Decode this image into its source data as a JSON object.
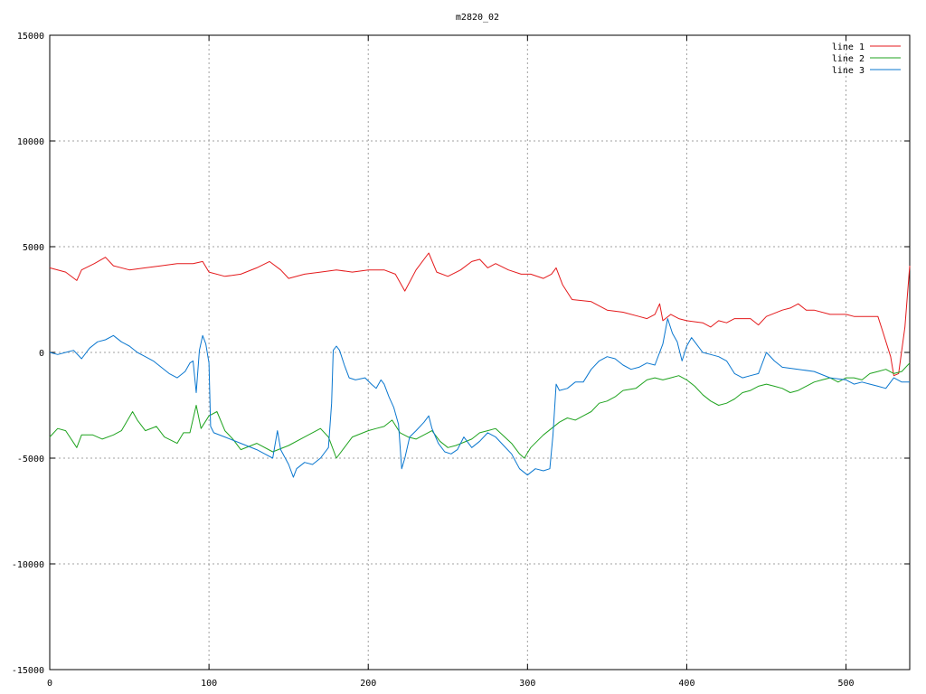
{
  "chart_data": {
    "type": "line",
    "title": "m2820_02",
    "xlabel": "",
    "ylabel": "",
    "xlim": [
      0,
      540
    ],
    "ylim": [
      -15000,
      15000
    ],
    "xticks": [
      0,
      100,
      200,
      300,
      400,
      500
    ],
    "yticks": [
      -15000,
      -10000,
      -5000,
      0,
      5000,
      10000,
      15000
    ],
    "grid": true,
    "legend_position": "top-right",
    "series": [
      {
        "name": "line 1",
        "color": "#e41a1c",
        "points": [
          [
            0,
            4000
          ],
          [
            10,
            3800
          ],
          [
            17,
            3400
          ],
          [
            20,
            3900
          ],
          [
            28,
            4200
          ],
          [
            35,
            4500
          ],
          [
            40,
            4100
          ],
          [
            50,
            3900
          ],
          [
            60,
            4000
          ],
          [
            70,
            4100
          ],
          [
            80,
            4200
          ],
          [
            90,
            4200
          ],
          [
            96,
            4300
          ],
          [
            100,
            3800
          ],
          [
            110,
            3600
          ],
          [
            120,
            3700
          ],
          [
            130,
            4000
          ],
          [
            138,
            4300
          ],
          [
            145,
            3900
          ],
          [
            150,
            3500
          ],
          [
            160,
            3700
          ],
          [
            170,
            3800
          ],
          [
            180,
            3900
          ],
          [
            190,
            3800
          ],
          [
            200,
            3900
          ],
          [
            210,
            3900
          ],
          [
            217,
            3700
          ],
          [
            223,
            2900
          ],
          [
            230,
            3900
          ],
          [
            238,
            4700
          ],
          [
            243,
            3800
          ],
          [
            250,
            3600
          ],
          [
            258,
            3900
          ],
          [
            265,
            4300
          ],
          [
            270,
            4400
          ],
          [
            275,
            4000
          ],
          [
            280,
            4200
          ],
          [
            288,
            3900
          ],
          [
            296,
            3700
          ],
          [
            302,
            3700
          ],
          [
            310,
            3500
          ],
          [
            315,
            3700
          ],
          [
            318,
            4000
          ],
          [
            322,
            3200
          ],
          [
            328,
            2500
          ],
          [
            340,
            2400
          ],
          [
            350,
            2000
          ],
          [
            360,
            1900
          ],
          [
            370,
            1700
          ],
          [
            375,
            1600
          ],
          [
            380,
            1800
          ],
          [
            383,
            2300
          ],
          [
            385,
            1500
          ],
          [
            390,
            1800
          ],
          [
            395,
            1600
          ],
          [
            400,
            1500
          ],
          [
            410,
            1400
          ],
          [
            415,
            1200
          ],
          [
            420,
            1500
          ],
          [
            425,
            1400
          ],
          [
            430,
            1600
          ],
          [
            440,
            1600
          ],
          [
            445,
            1300
          ],
          [
            450,
            1700
          ],
          [
            460,
            2000
          ],
          [
            465,
            2100
          ],
          [
            470,
            2300
          ],
          [
            475,
            2000
          ],
          [
            480,
            2000
          ],
          [
            490,
            1800
          ],
          [
            500,
            1800
          ],
          [
            505,
            1700
          ],
          [
            515,
            1700
          ],
          [
            520,
            1700
          ],
          [
            523,
            1000
          ],
          [
            528,
            -200
          ],
          [
            530,
            -1100
          ],
          [
            533,
            -1000
          ],
          [
            537,
            1200
          ],
          [
            540,
            4100
          ]
        ]
      },
      {
        "name": "line 2",
        "color": "#1fa31f",
        "points": [
          [
            0,
            -4000
          ],
          [
            5,
            -3600
          ],
          [
            10,
            -3700
          ],
          [
            17,
            -4500
          ],
          [
            20,
            -3900
          ],
          [
            27,
            -3900
          ],
          [
            33,
            -4100
          ],
          [
            40,
            -3900
          ],
          [
            45,
            -3700
          ],
          [
            52,
            -2800
          ],
          [
            55,
            -3200
          ],
          [
            60,
            -3700
          ],
          [
            67,
            -3500
          ],
          [
            72,
            -4000
          ],
          [
            80,
            -4300
          ],
          [
            84,
            -3800
          ],
          [
            88,
            -3800
          ],
          [
            92,
            -2500
          ],
          [
            95,
            -3600
          ],
          [
            100,
            -3000
          ],
          [
            105,
            -2800
          ],
          [
            110,
            -3700
          ],
          [
            115,
            -4100
          ],
          [
            120,
            -4600
          ],
          [
            130,
            -4300
          ],
          [
            140,
            -4700
          ],
          [
            150,
            -4400
          ],
          [
            160,
            -4000
          ],
          [
            170,
            -3600
          ],
          [
            175,
            -4000
          ],
          [
            180,
            -5000
          ],
          [
            185,
            -4500
          ],
          [
            190,
            -4000
          ],
          [
            200,
            -3700
          ],
          [
            205,
            -3600
          ],
          [
            210,
            -3500
          ],
          [
            215,
            -3200
          ],
          [
            220,
            -3800
          ],
          [
            225,
            -4000
          ],
          [
            230,
            -4100
          ],
          [
            240,
            -3700
          ],
          [
            245,
            -4200
          ],
          [
            250,
            -4500
          ],
          [
            255,
            -4400
          ],
          [
            265,
            -4100
          ],
          [
            270,
            -3800
          ],
          [
            275,
            -3700
          ],
          [
            280,
            -3600
          ],
          [
            290,
            -4300
          ],
          [
            295,
            -4800
          ],
          [
            298,
            -5000
          ],
          [
            302,
            -4500
          ],
          [
            306,
            -4200
          ],
          [
            310,
            -3900
          ],
          [
            315,
            -3600
          ],
          [
            320,
            -3300
          ],
          [
            325,
            -3100
          ],
          [
            330,
            -3200
          ],
          [
            335,
            -3000
          ],
          [
            340,
            -2800
          ],
          [
            345,
            -2400
          ],
          [
            350,
            -2300
          ],
          [
            355,
            -2100
          ],
          [
            360,
            -1800
          ],
          [
            368,
            -1700
          ],
          [
            375,
            -1300
          ],
          [
            380,
            -1200
          ],
          [
            385,
            -1300
          ],
          [
            390,
            -1200
          ],
          [
            395,
            -1100
          ],
          [
            400,
            -1300
          ],
          [
            405,
            -1600
          ],
          [
            410,
            -2000
          ],
          [
            415,
            -2300
          ],
          [
            420,
            -2500
          ],
          [
            425,
            -2400
          ],
          [
            430,
            -2200
          ],
          [
            435,
            -1900
          ],
          [
            440,
            -1800
          ],
          [
            445,
            -1600
          ],
          [
            450,
            -1500
          ],
          [
            455,
            -1600
          ],
          [
            460,
            -1700
          ],
          [
            465,
            -1900
          ],
          [
            470,
            -1800
          ],
          [
            475,
            -1600
          ],
          [
            480,
            -1400
          ],
          [
            485,
            -1300
          ],
          [
            490,
            -1200
          ],
          [
            495,
            -1400
          ],
          [
            500,
            -1200
          ],
          [
            505,
            -1200
          ],
          [
            510,
            -1300
          ],
          [
            515,
            -1000
          ],
          [
            520,
            -900
          ],
          [
            525,
            -800
          ],
          [
            530,
            -1000
          ],
          [
            535,
            -900
          ],
          [
            540,
            -500
          ]
        ]
      },
      {
        "name": "line 3",
        "color": "#0a77cf",
        "points": [
          [
            0,
            0
          ],
          [
            5,
            -100
          ],
          [
            10,
            0
          ],
          [
            15,
            100
          ],
          [
            20,
            -300
          ],
          [
            25,
            200
          ],
          [
            30,
            500
          ],
          [
            35,
            600
          ],
          [
            40,
            800
          ],
          [
            45,
            500
          ],
          [
            50,
            300
          ],
          [
            55,
            0
          ],
          [
            60,
            -200
          ],
          [
            65,
            -400
          ],
          [
            70,
            -700
          ],
          [
            75,
            -1000
          ],
          [
            80,
            -1200
          ],
          [
            85,
            -900
          ],
          [
            88,
            -500
          ],
          [
            90,
            -400
          ],
          [
            92,
            -1900
          ],
          [
            94,
            100
          ],
          [
            96,
            800
          ],
          [
            98,
            400
          ],
          [
            100,
            -500
          ],
          [
            101,
            -3500
          ],
          [
            103,
            -3800
          ],
          [
            110,
            -4000
          ],
          [
            120,
            -4300
          ],
          [
            130,
            -4600
          ],
          [
            135,
            -4800
          ],
          [
            140,
            -5000
          ],
          [
            143,
            -3700
          ],
          [
            145,
            -4600
          ],
          [
            150,
            -5300
          ],
          [
            153,
            -5900
          ],
          [
            155,
            -5500
          ],
          [
            160,
            -5200
          ],
          [
            165,
            -5300
          ],
          [
            170,
            -5000
          ],
          [
            175,
            -4500
          ],
          [
            177,
            -2400
          ],
          [
            178,
            100
          ],
          [
            180,
            300
          ],
          [
            182,
            100
          ],
          [
            185,
            -600
          ],
          [
            188,
            -1200
          ],
          [
            192,
            -1300
          ],
          [
            198,
            -1200
          ],
          [
            202,
            -1500
          ],
          [
            205,
            -1700
          ],
          [
            208,
            -1300
          ],
          [
            210,
            -1500
          ],
          [
            213,
            -2100
          ],
          [
            216,
            -2600
          ],
          [
            219,
            -3400
          ],
          [
            221,
            -5500
          ],
          [
            223,
            -5000
          ],
          [
            226,
            -4000
          ],
          [
            230,
            -3700
          ],
          [
            235,
            -3300
          ],
          [
            238,
            -3000
          ],
          [
            240,
            -3600
          ],
          [
            244,
            -4300
          ],
          [
            248,
            -4700
          ],
          [
            252,
            -4800
          ],
          [
            256,
            -4600
          ],
          [
            260,
            -4000
          ],
          [
            265,
            -4500
          ],
          [
            270,
            -4200
          ],
          [
            275,
            -3800
          ],
          [
            280,
            -4000
          ],
          [
            285,
            -4400
          ],
          [
            290,
            -4800
          ],
          [
            295,
            -5500
          ],
          [
            300,
            -5800
          ],
          [
            305,
            -5500
          ],
          [
            310,
            -5600
          ],
          [
            314,
            -5500
          ],
          [
            316,
            -3900
          ],
          [
            318,
            -1500
          ],
          [
            320,
            -1800
          ],
          [
            325,
            -1700
          ],
          [
            330,
            -1400
          ],
          [
            335,
            -1400
          ],
          [
            340,
            -800
          ],
          [
            345,
            -400
          ],
          [
            350,
            -200
          ],
          [
            355,
            -300
          ],
          [
            360,
            -600
          ],
          [
            365,
            -800
          ],
          [
            370,
            -700
          ],
          [
            375,
            -500
          ],
          [
            380,
            -600
          ],
          [
            385,
            400
          ],
          [
            388,
            1600
          ],
          [
            391,
            900
          ],
          [
            394,
            500
          ],
          [
            397,
            -400
          ],
          [
            400,
            300
          ],
          [
            403,
            700
          ],
          [
            406,
            400
          ],
          [
            410,
            0
          ],
          [
            415,
            -100
          ],
          [
            420,
            -200
          ],
          [
            425,
            -400
          ],
          [
            430,
            -1000
          ],
          [
            435,
            -1200
          ],
          [
            440,
            -1100
          ],
          [
            445,
            -1000
          ],
          [
            450,
            0
          ],
          [
            455,
            -400
          ],
          [
            460,
            -700
          ],
          [
            470,
            -800
          ],
          [
            480,
            -900
          ],
          [
            490,
            -1200
          ],
          [
            500,
            -1300
          ],
          [
            505,
            -1500
          ],
          [
            510,
            -1400
          ],
          [
            515,
            -1500
          ],
          [
            520,
            -1600
          ],
          [
            525,
            -1700
          ],
          [
            530,
            -1200
          ],
          [
            535,
            -1400
          ],
          [
            540,
            -1400
          ]
        ]
      }
    ]
  }
}
